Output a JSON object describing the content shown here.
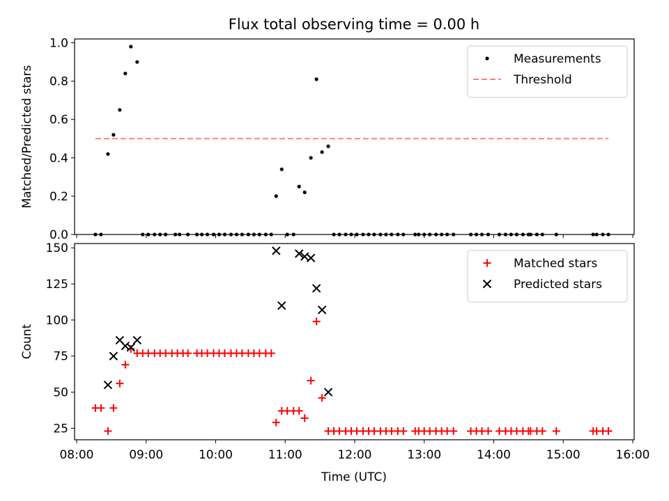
{
  "chart_data": {
    "title": "Flux total observing time = 0.00 h",
    "xlabel": "Time (UTC)",
    "x_ticks": [
      "08:00",
      "09:00",
      "10:00",
      "11:00",
      "12:00",
      "13:00",
      "14:00",
      "15:00",
      "16:00"
    ],
    "x_range_hours": [
      7.97,
      16.02
    ],
    "panels": [
      {
        "type": "scatter",
        "ylabel": "Matched/Predicted stars",
        "ylim": [
          0,
          1.02
        ],
        "y_ticks": [
          "0.0",
          "0.2",
          "0.4",
          "0.6",
          "0.8",
          "1.0"
        ],
        "y_tick_values": [
          0,
          0.2,
          0.4,
          0.6,
          0.8,
          1.0
        ],
        "legend_position": "upper right",
        "series": [
          {
            "name": "Measurements",
            "marker": "dot",
            "color": "#000000",
            "points": [
              [
                8.27,
                0
              ],
              [
                8.35,
                0
              ],
              [
                8.45,
                0.42
              ],
              [
                8.53,
                0.52
              ],
              [
                8.62,
                0.65
              ],
              [
                8.7,
                0.84
              ],
              [
                8.78,
                0.98
              ],
              [
                8.87,
                0.9
              ],
              [
                8.95,
                0
              ],
              [
                9.03,
                0
              ],
              [
                9.12,
                0
              ],
              [
                9.2,
                0
              ],
              [
                9.28,
                0
              ],
              [
                9.42,
                0
              ],
              [
                9.48,
                0
              ],
              [
                9.6,
                0
              ],
              [
                9.73,
                0
              ],
              [
                9.8,
                0
              ],
              [
                9.88,
                0
              ],
              [
                9.97,
                0
              ],
              [
                10.05,
                0
              ],
              [
                10.13,
                0
              ],
              [
                10.22,
                0
              ],
              [
                10.3,
                0
              ],
              [
                10.38,
                0
              ],
              [
                10.47,
                0
              ],
              [
                10.55,
                0
              ],
              [
                10.63,
                0
              ],
              [
                10.72,
                0
              ],
              [
                10.8,
                0
              ],
              [
                10.87,
                0.2
              ],
              [
                10.95,
                0.34
              ],
              [
                11.03,
                0
              ],
              [
                11.12,
                0
              ],
              [
                11.2,
                0.25
              ],
              [
                11.28,
                0.22
              ],
              [
                11.37,
                0.4
              ],
              [
                11.45,
                0.81
              ],
              [
                11.53,
                0.43
              ],
              [
                11.62,
                0.46
              ],
              [
                11.7,
                0
              ],
              [
                11.78,
                0
              ],
              [
                11.87,
                0
              ],
              [
                11.95,
                0
              ],
              [
                12.03,
                0
              ],
              [
                12.12,
                0
              ],
              [
                12.2,
                0
              ],
              [
                12.28,
                0
              ],
              [
                12.37,
                0
              ],
              [
                12.45,
                0
              ],
              [
                12.53,
                0
              ],
              [
                12.62,
                0
              ],
              [
                12.7,
                0
              ],
              [
                12.87,
                0
              ],
              [
                12.92,
                0
              ],
              [
                13.0,
                0
              ],
              [
                13.08,
                0
              ],
              [
                13.17,
                0
              ],
              [
                13.25,
                0
              ],
              [
                13.33,
                0
              ],
              [
                13.42,
                0
              ],
              [
                13.67,
                0
              ],
              [
                13.75,
                0
              ],
              [
                13.83,
                0
              ],
              [
                13.92,
                0
              ],
              [
                14.08,
                0
              ],
              [
                14.17,
                0
              ],
              [
                14.25,
                0
              ],
              [
                14.33,
                0
              ],
              [
                14.42,
                0
              ],
              [
                14.5,
                0
              ],
              [
                14.53,
                0
              ],
              [
                14.62,
                0
              ],
              [
                14.7,
                0
              ],
              [
                14.9,
                0
              ],
              [
                15.43,
                0
              ],
              [
                15.48,
                0
              ],
              [
                15.57,
                0
              ],
              [
                15.65,
                0
              ]
            ]
          },
          {
            "name": "Threshold",
            "type": "line",
            "style": "dashed",
            "color": "#ff8080",
            "x": [
              8.27,
              15.65
            ],
            "y": [
              0.5,
              0.5
            ]
          }
        ]
      },
      {
        "type": "scatter",
        "ylabel": "Count",
        "ylim": [
          17,
          153
        ],
        "y_ticks": [
          "25",
          "50",
          "75",
          "100",
          "125",
          "150"
        ],
        "y_tick_values": [
          25,
          50,
          75,
          100,
          125,
          150
        ],
        "legend_position": "upper right",
        "series": [
          {
            "name": "Matched stars",
            "marker": "plus",
            "color": "#ff0000",
            "points": [
              [
                8.27,
                39
              ],
              [
                8.35,
                39
              ],
              [
                8.45,
                23
              ],
              [
                8.53,
                39
              ],
              [
                8.62,
                56
              ],
              [
                8.7,
                69
              ],
              [
                8.78,
                80
              ],
              [
                8.87,
                77
              ],
              [
                8.95,
                77
              ],
              [
                9.03,
                77
              ],
              [
                9.12,
                77
              ],
              [
                9.2,
                77
              ],
              [
                9.28,
                77
              ],
              [
                9.37,
                77
              ],
              [
                9.45,
                77
              ],
              [
                9.53,
                77
              ],
              [
                9.6,
                77
              ],
              [
                9.73,
                77
              ],
              [
                9.8,
                77
              ],
              [
                9.88,
                77
              ],
              [
                9.97,
                77
              ],
              [
                10.05,
                77
              ],
              [
                10.13,
                77
              ],
              [
                10.22,
                77
              ],
              [
                10.3,
                77
              ],
              [
                10.38,
                77
              ],
              [
                10.47,
                77
              ],
              [
                10.55,
                77
              ],
              [
                10.63,
                77
              ],
              [
                10.72,
                77
              ],
              [
                10.8,
                77
              ],
              [
                10.87,
                29
              ],
              [
                10.95,
                37
              ],
              [
                11.03,
                37
              ],
              [
                11.12,
                37
              ],
              [
                11.2,
                37
              ],
              [
                11.28,
                32
              ],
              [
                11.37,
                58
              ],
              [
                11.45,
                99
              ],
              [
                11.53,
                46
              ],
              [
                11.62,
                23
              ],
              [
                11.7,
                23
              ],
              [
                11.78,
                23
              ],
              [
                11.87,
                23
              ],
              [
                11.95,
                23
              ],
              [
                12.03,
                23
              ],
              [
                12.12,
                23
              ],
              [
                12.2,
                23
              ],
              [
                12.28,
                23
              ],
              [
                12.37,
                23
              ],
              [
                12.45,
                23
              ],
              [
                12.53,
                23
              ],
              [
                12.62,
                23
              ],
              [
                12.7,
                23
              ],
              [
                12.87,
                23
              ],
              [
                12.92,
                23
              ],
              [
                13.0,
                23
              ],
              [
                13.08,
                23
              ],
              [
                13.17,
                23
              ],
              [
                13.25,
                23
              ],
              [
                13.33,
                23
              ],
              [
                13.42,
                23
              ],
              [
                13.67,
                23
              ],
              [
                13.75,
                23
              ],
              [
                13.83,
                23
              ],
              [
                13.92,
                23
              ],
              [
                14.08,
                23
              ],
              [
                14.17,
                23
              ],
              [
                14.25,
                23
              ],
              [
                14.33,
                23
              ],
              [
                14.42,
                23
              ],
              [
                14.5,
                23
              ],
              [
                14.53,
                23
              ],
              [
                14.62,
                23
              ],
              [
                14.7,
                23
              ],
              [
                14.9,
                23
              ],
              [
                15.43,
                23
              ],
              [
                15.48,
                23
              ],
              [
                15.57,
                23
              ],
              [
                15.65,
                23
              ]
            ]
          },
          {
            "name": "Predicted stars",
            "marker": "x",
            "color": "#000000",
            "points": [
              [
                8.45,
                55
              ],
              [
                8.53,
                75
              ],
              [
                8.62,
                86
              ],
              [
                8.7,
                82
              ],
              [
                8.78,
                81
              ],
              [
                8.87,
                86
              ],
              [
                10.87,
                148
              ],
              [
                10.95,
                110
              ],
              [
                11.2,
                146
              ],
              [
                11.28,
                144
              ],
              [
                11.37,
                143
              ],
              [
                11.45,
                122
              ],
              [
                11.53,
                107
              ],
              [
                11.62,
                50
              ]
            ]
          }
        ]
      }
    ]
  }
}
